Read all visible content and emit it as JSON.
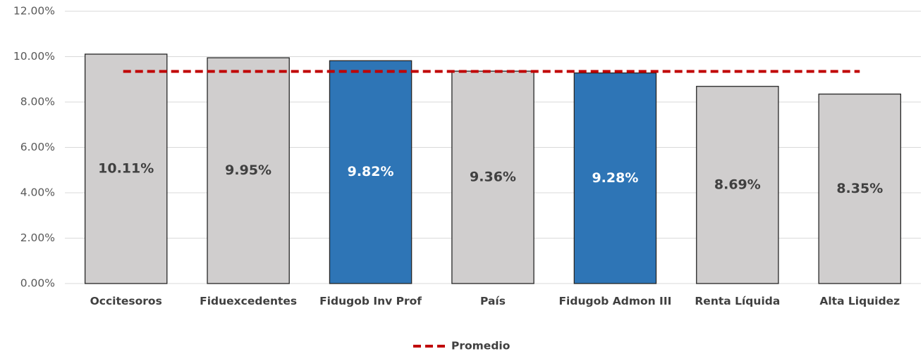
{
  "chart_data": {
    "type": "bar",
    "categories": [
      "Occitesoros",
      "Fiduexcedentes",
      "Fidugob Inv Prof",
      "País",
      "Fidugob Admon III",
      "Renta Líquida",
      "Alta Liquidez"
    ],
    "values": [
      10.11,
      9.95,
      9.82,
      9.36,
      9.28,
      8.69,
      8.35
    ],
    "value_labels": [
      "10.11%",
      "9.95%",
      "9.82%",
      "9.36%",
      "9.28%",
      "8.69%",
      "8.35%"
    ],
    "colors": [
      "#d0cece",
      "#d0cece",
      "#2e75b6",
      "#d0cece",
      "#2e75b6",
      "#d0cece",
      "#d0cece"
    ],
    "average": {
      "name": "Promedio",
      "value": 9.35,
      "color": "#c00000"
    },
    "ylim": [
      0,
      12
    ],
    "yticks": [
      {
        "value": 0,
        "label": "0.00%"
      },
      {
        "value": 2,
        "label": "2.00%"
      },
      {
        "value": 4,
        "label": "4.00%"
      },
      {
        "value": 6,
        "label": "6.00%"
      },
      {
        "value": 8,
        "label": "8.00%"
      },
      {
        "value": 10,
        "label": "10.00%"
      },
      {
        "value": 12,
        "label": "12.00%"
      }
    ],
    "grid": true,
    "legend": "bottom"
  }
}
